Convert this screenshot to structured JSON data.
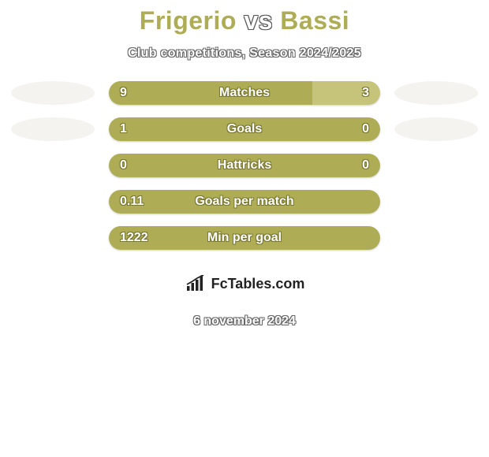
{
  "container": {
    "background_color": "#ffffff"
  },
  "title": {
    "left": "Frigerio",
    "vs": "vs",
    "right": "Bassi",
    "left_color": "#aead56",
    "right_color": "#aead56"
  },
  "subtitle": "Club competitions, Season 2024/2025",
  "colors": {
    "bar_left": "#aead56",
    "bar_right": "#c6c47a",
    "ellipse_left": "#f4f3ef",
    "ellipse_right": "#f4f3ef"
  },
  "rows": [
    {
      "label": "Matches",
      "left_val": "9",
      "right_val": "3",
      "left_num": 9,
      "right_num": 3,
      "show_ellipse": true
    },
    {
      "label": "Goals",
      "left_val": "1",
      "right_val": "0",
      "left_num": 1,
      "right_num": 0,
      "show_ellipse": true
    },
    {
      "label": "Hattricks",
      "left_val": "0",
      "right_val": "0",
      "left_num": 0,
      "right_num": 0,
      "show_ellipse": false
    },
    {
      "label": "Goals per match",
      "left_val": "0.11",
      "right_val": "",
      "left_num": 0.11,
      "right_num": 0,
      "show_ellipse": false
    },
    {
      "label": "Min per goal",
      "left_val": "1222",
      "right_val": "",
      "left_num": 1222,
      "right_num": 0,
      "show_ellipse": false
    }
  ],
  "logo_text": "FcTables.com",
  "date": "6 november 2024"
}
